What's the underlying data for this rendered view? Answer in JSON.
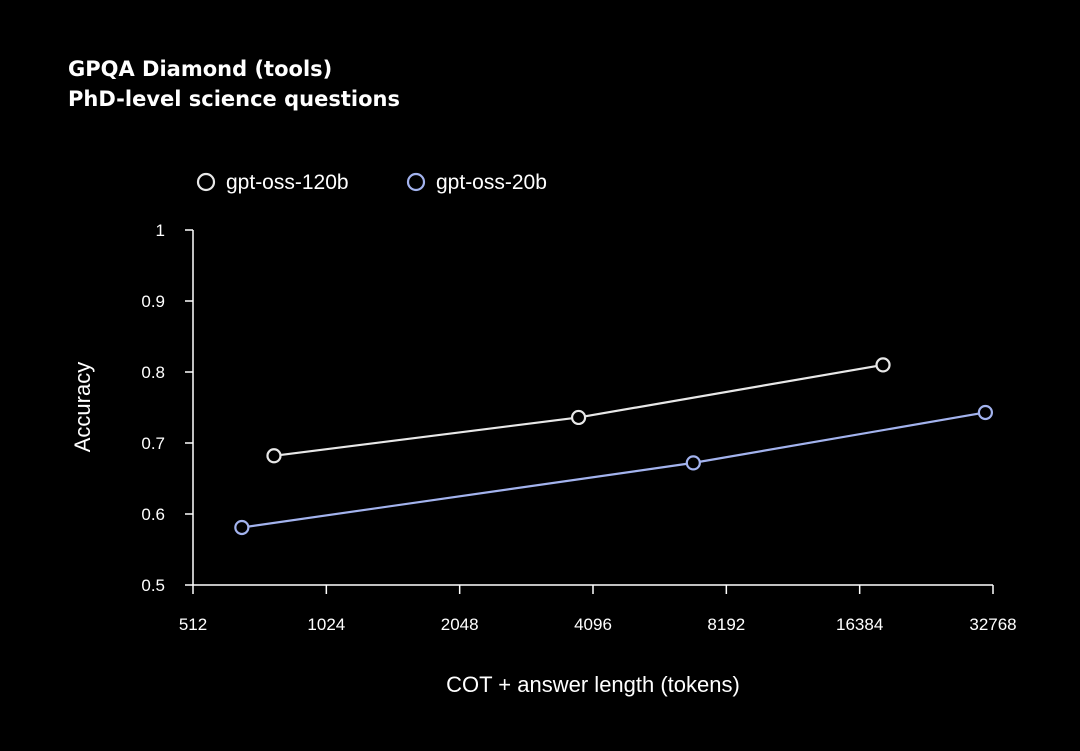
{
  "chart_data": {
    "type": "line",
    "title": "GPQA Diamond (tools)",
    "subtitle": "PhD-level science questions",
    "xlabel": "COT + answer length (tokens)",
    "ylabel": "Accuracy",
    "x_scale": "log2",
    "xlim": [
      512,
      32768
    ],
    "ylim": [
      0.5,
      1
    ],
    "x_ticks": [
      "512",
      "1024",
      "2048",
      "4096",
      "8192",
      "16384",
      "32768"
    ],
    "y_ticks": [
      "0.5",
      "0.6",
      "0.7",
      "0.8",
      "0.9",
      "1"
    ],
    "grid": false,
    "legend_position": "top-left",
    "series": [
      {
        "name": "gpt-oss-120b",
        "color": "#e8e8e8",
        "x": [
          780,
          3800,
          18500
        ],
        "y": [
          0.682,
          0.736,
          0.81
        ]
      },
      {
        "name": "gpt-oss-20b",
        "color": "#a3b3ee",
        "x": [
          660,
          6900,
          31500
        ],
        "y": [
          0.581,
          0.672,
          0.743
        ]
      }
    ]
  }
}
